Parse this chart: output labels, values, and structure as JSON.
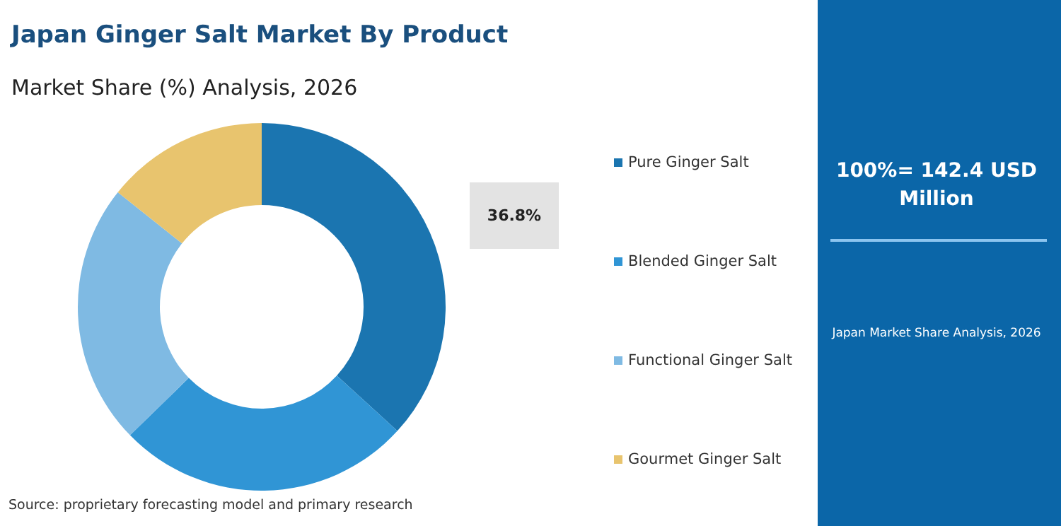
{
  "chart_data": {
    "type": "donut",
    "title": "Japan Ginger Salt Market By Product",
    "subtitle": "Market Share (%) Analysis, 2026",
    "categories": [
      "Pure Ginger Salt",
      "Blended Ginger Salt",
      "Functional Ginger Salt",
      "Gourmet Ginger Salt"
    ],
    "values": [
      36.8,
      25.9,
      23.0,
      14.3
    ],
    "colors": [
      "#1b75b0",
      "#3095d5",
      "#7fbae3",
      "#e8c46e"
    ],
    "value_labels": [
      "36.8%",
      null,
      null,
      null
    ],
    "legend": "right",
    "annotations": [
      "100%= 142.4 USD Million",
      "Japan Market Share Analysis, 2026",
      "Source: proprietary forecasting model and primary research"
    ]
  }
}
